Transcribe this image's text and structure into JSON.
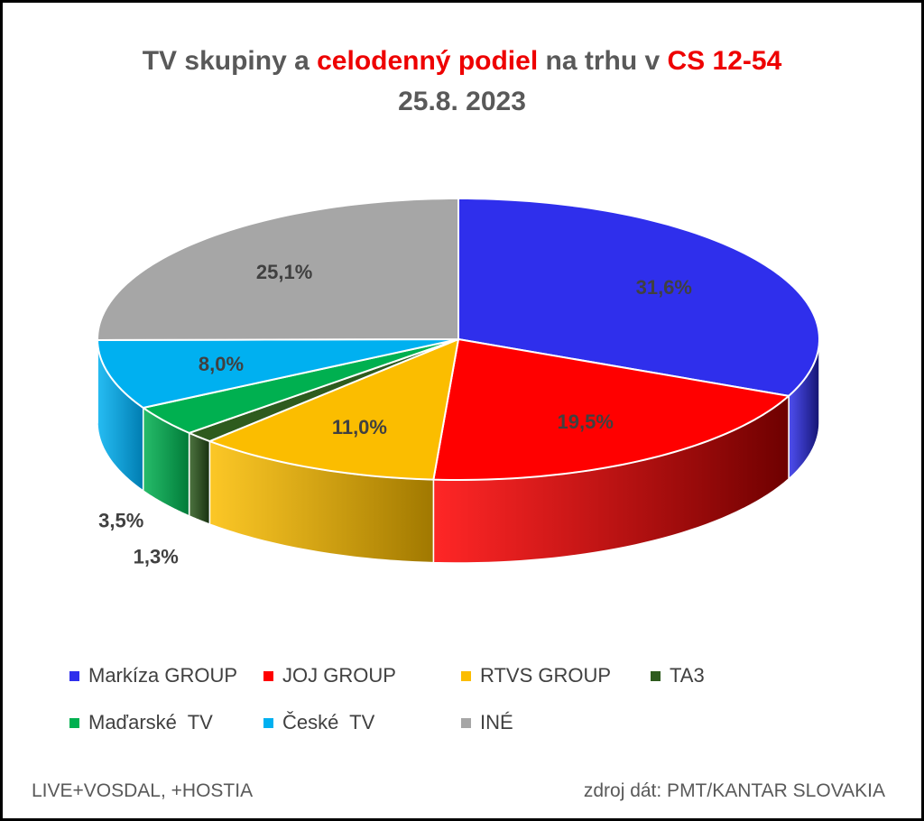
{
  "header": {
    "title_part1": "TV skupiny a ",
    "title_highlight1": "celodenný podiel",
    "title_part2": " na trhu v ",
    "title_highlight2": "CS 12-54",
    "subtitle": "25.8. 2023"
  },
  "chart_data": {
    "type": "pie",
    "title": "TV skupiny a celodenný podiel na trhu v CS 12-54",
    "subtitle": "25.8. 2023",
    "slices": [
      {
        "label": "Markíza GROUP",
        "value": 31.6,
        "display": "31,6%",
        "color": "#2f2fec",
        "side_color": "#141470"
      },
      {
        "label": "JOJ GROUP",
        "value": 19.5,
        "display": "19,5%",
        "color": "#ff0000",
        "side_color": "#6e0000"
      },
      {
        "label": "RTVS GROUP",
        "value": 11.0,
        "display": "11,0%",
        "color": "#fbbd00",
        "side_color": "#a07800"
      },
      {
        "label": "TA3",
        "value": 1.3,
        "display": "1,3%",
        "color": "#2e5b1e",
        "side_color": "#17300f"
      },
      {
        "label": "Maďarské  TV",
        "value": 3.5,
        "display": "3,5%",
        "color": "#00b050",
        "side_color": "#007a38"
      },
      {
        "label": "České  TV",
        "value": 8.0,
        "display": "8,0%",
        "color": "#00b0f0",
        "side_color": "#007cb0"
      },
      {
        "label": "INÉ",
        "value": 25.1,
        "display": "25,1%",
        "color": "#a6a6a6",
        "side_color": "#6e6e6e"
      }
    ],
    "legend_position": "bottom"
  },
  "footer": {
    "left": "LIVE+VOSDAL, +HOSTIA",
    "right": "zdroj dát: PMT/KANTAR SLOVAKIA"
  }
}
